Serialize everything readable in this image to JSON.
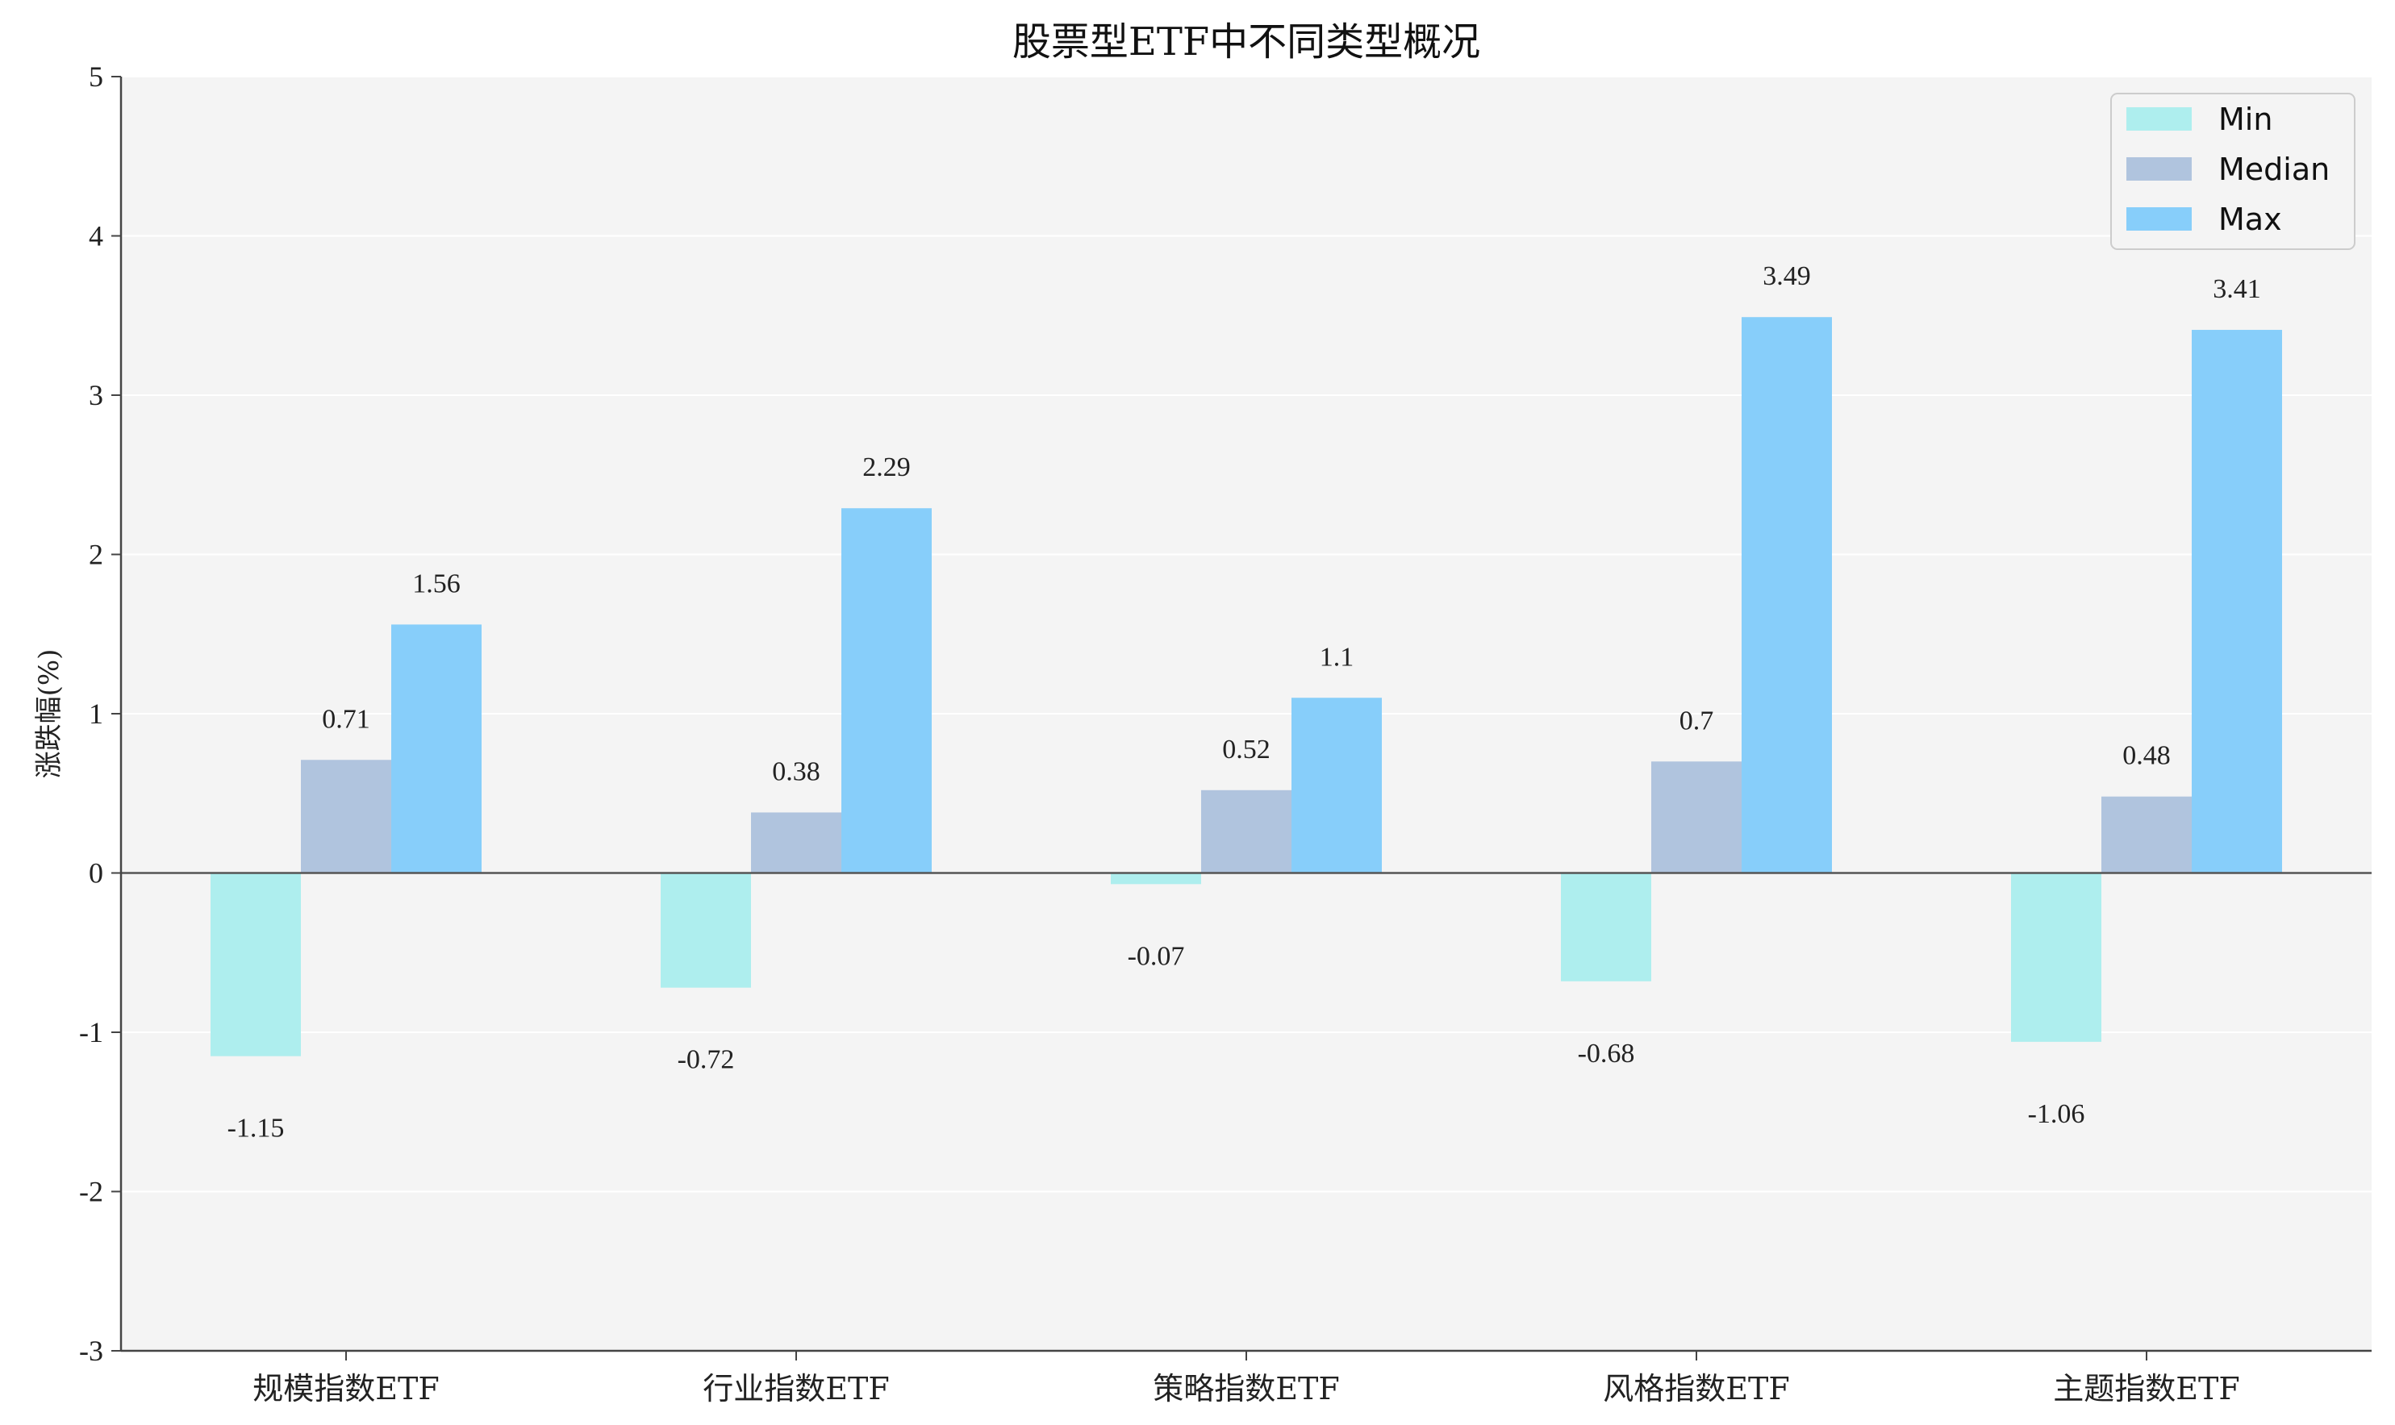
{
  "chart_data": {
    "type": "bar",
    "title": "股票型ETF中不同类型概况",
    "xlabel": "",
    "ylabel": "涨跌幅(%)",
    "ylim": [
      -3,
      5
    ],
    "yticks": [
      -3,
      -2,
      -1,
      0,
      1,
      2,
      3,
      4,
      5
    ],
    "categories": [
      "规模指数ETF",
      "行业指数ETF",
      "策略指数ETF",
      "风格指数ETF",
      "主题指数ETF"
    ],
    "series": [
      {
        "name": "Min",
        "color": "#aeeeee",
        "values": [
          -1.15,
          -0.72,
          -0.07,
          -0.68,
          -1.06
        ],
        "labels": [
          "-1.15",
          "-0.72",
          "-0.07",
          "-0.68",
          "-1.06"
        ]
      },
      {
        "name": "Median",
        "color": "#b0c4de",
        "values": [
          0.71,
          0.38,
          0.52,
          0.7,
          0.48
        ],
        "labels": [
          "0.71",
          "0.38",
          "0.52",
          "0.7",
          "0.48"
        ]
      },
      {
        "name": "Max",
        "color": "#87cefa",
        "values": [
          1.56,
          2.29,
          1.1,
          3.49,
          3.41
        ],
        "labels": [
          "1.56",
          "2.29",
          "1.1",
          "3.49",
          "3.41"
        ]
      }
    ],
    "grid": true,
    "legend_position": "top-right",
    "background_color": "#f4f4f4",
    "zero_line_color": "#555555"
  }
}
